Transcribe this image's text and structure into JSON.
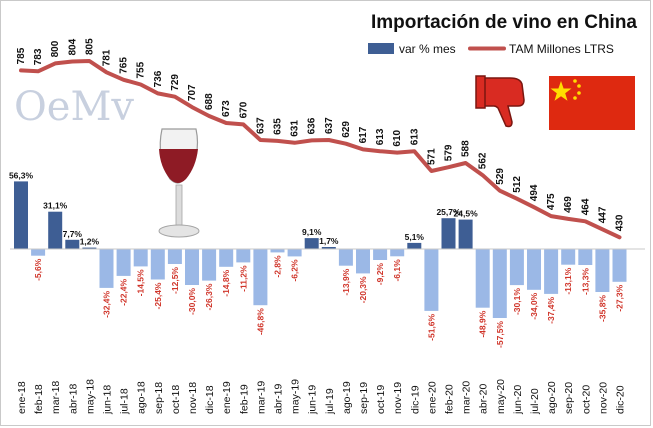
{
  "chart_data": {
    "type": "bar+line",
    "title": "Importación de vino en China",
    "legend": [
      "var % mes",
      "TAM Millones LTRS"
    ],
    "legend_position": "top-right",
    "categories": [
      "ene-18",
      "feb-18",
      "mar-18",
      "abr-18",
      "may-18",
      "jun-18",
      "jul-18",
      "ago-18",
      "sep-18",
      "oct-18",
      "nov-18",
      "dic-18",
      "ene-19",
      "feb-19",
      "mar-19",
      "abr-19",
      "may-19",
      "jun-19",
      "jul-19",
      "ago-19",
      "sep-19",
      "oct-19",
      "nov-19",
      "dic-19",
      "ene-20",
      "feb-20",
      "mar-20",
      "abr-20",
      "may-20",
      "jun-20",
      "jul-20",
      "ago-20",
      "sep-20",
      "oct-20",
      "nov-20",
      "dic-20"
    ],
    "series": [
      {
        "name": "var % mes",
        "type": "bar",
        "values": [
          56.3,
          -5.6,
          31.1,
          7.7,
          1.2,
          -32.4,
          -22.4,
          -14.5,
          -25.4,
          -12.5,
          -30.0,
          -26.3,
          -14.8,
          -11.2,
          -46.8,
          -2.8,
          -6.2,
          9.1,
          1.7,
          -13.9,
          -20.3,
          -9.2,
          -6.1,
          5.1,
          -51.6,
          25.7,
          24.5,
          -48.9,
          -57.5,
          -30.1,
          -34.0,
          -37.4,
          -13.1,
          -13.3,
          -35.8,
          -27.3
        ],
        "labels": [
          "56,3%",
          "-5,6%",
          "31,1%",
          "7,7%",
          "1,2%",
          "-32,4%",
          "-22,4%",
          "-14,5%",
          "-25,4%",
          "-12,5%",
          "-30,0%",
          "-26,3%",
          "-14,8%",
          "-11,2%",
          "-46,8%",
          "-2,8%",
          "-6,2%",
          "9,1%",
          "1,7%",
          "-13,9%",
          "-20,3%",
          "-9,2%",
          "-6,1%",
          "5,1%",
          "-51,6%",
          "25,7%",
          "24,5%",
          "-48,9%",
          "-57,5%",
          "-30,1%",
          "-34,0%",
          "-37,4%",
          "-13,1%",
          "-13,3%",
          "-35,8%",
          "-27,3%"
        ],
        "color_positive": "#3e5e94",
        "color_negative": "#9bb8e6",
        "label_color_positive": "#111111",
        "label_color_negative": "#d0352a"
      },
      {
        "name": "TAM Millones LTRS",
        "type": "line",
        "values": [
          785,
          783,
          800,
          804,
          805,
          781,
          765,
          755,
          736,
          729,
          707,
          688,
          673,
          670,
          637,
          635,
          631,
          636,
          637,
          629,
          617,
          613,
          610,
          613,
          571,
          579,
          588,
          562,
          529,
          512,
          494,
          475,
          469,
          464,
          447,
          430
        ],
        "color": "#c0504d"
      }
    ]
  },
  "logo": {
    "text": "OeMv"
  },
  "icons": [
    "wine-glass-icon",
    "thumbs-down-icon",
    "china-flag-icon"
  ]
}
